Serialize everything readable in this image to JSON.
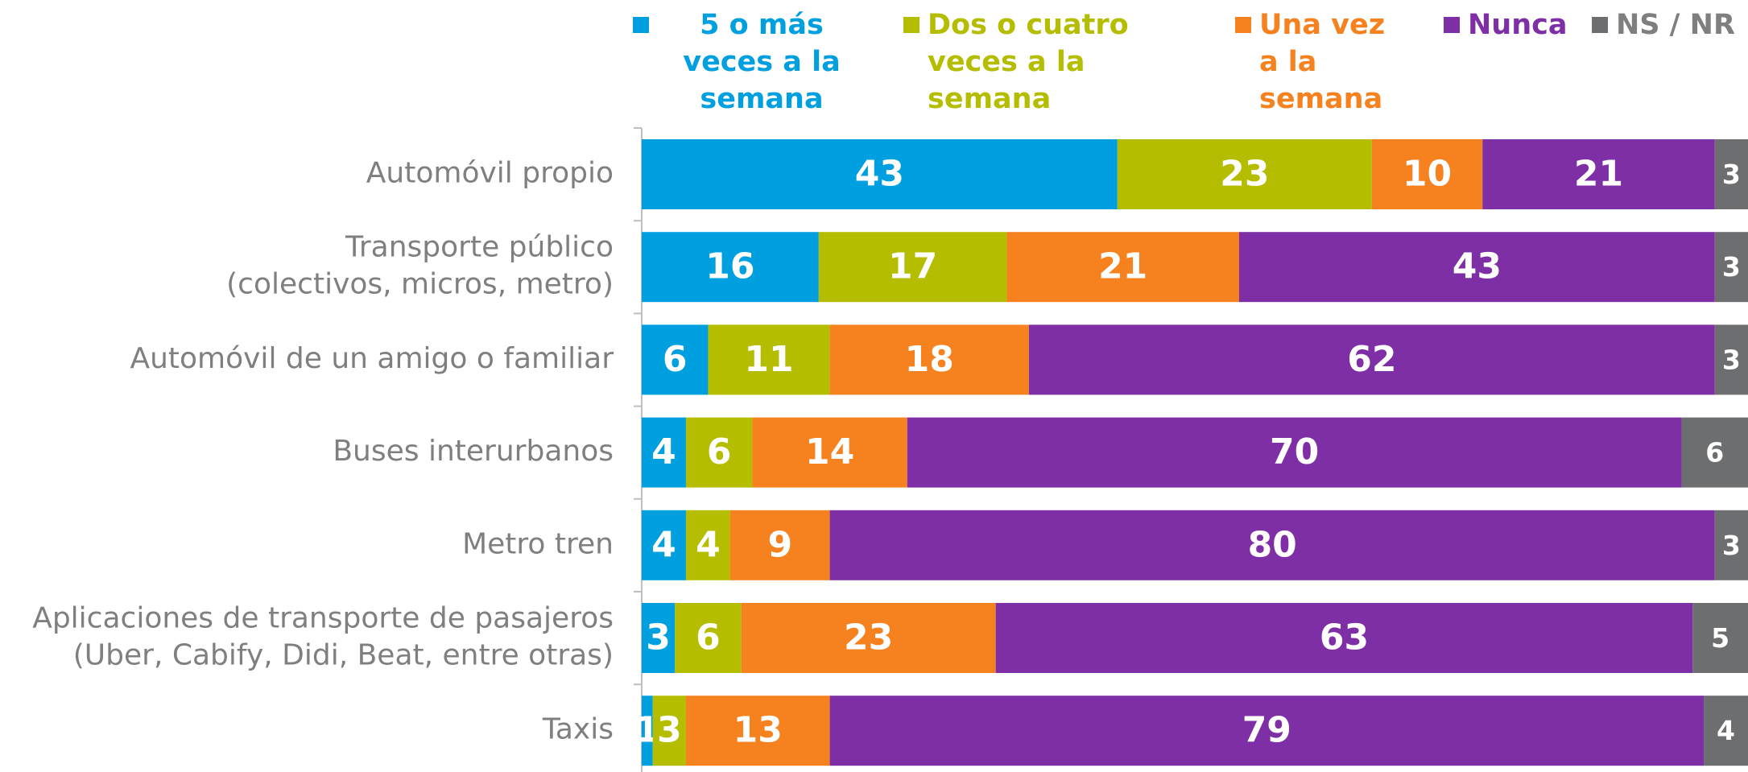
{
  "chart_data": {
    "type": "stacked-barh",
    "categories": [
      "Automóvil propio",
      "Transporte público\n(colectivos, micros, metro)",
      "Automóvil de un amigo o familiar",
      "Buses interurbanos",
      "Metro tren",
      "Aplicaciones de transporte de pasajeros\n(Uber, Cabify, Didi, Beat, entre otras)",
      "Taxis"
    ],
    "series": [
      {
        "name": "5 o más veces a la semana",
        "color": "#009fe0",
        "values": [
          43,
          16,
          6,
          4,
          4,
          3,
          1
        ]
      },
      {
        "name": "Dos o cuatro veces a la semana",
        "color": "#b5bd00",
        "values": [
          23,
          17,
          11,
          6,
          4,
          6,
          3
        ]
      },
      {
        "name": "Una vez a la semana",
        "color": "#f5821f",
        "values": [
          10,
          21,
          18,
          14,
          9,
          23,
          13
        ]
      },
      {
        "name": "Nunca",
        "color": "#7f2fa5",
        "values": [
          21,
          43,
          62,
          70,
          80,
          63,
          79
        ]
      },
      {
        "name": "NS / NR",
        "color": "#6d6e70",
        "values": [
          3,
          3,
          3,
          6,
          3,
          5,
          4
        ]
      }
    ],
    "xlim": [
      0,
      100
    ],
    "legend": "top"
  }
}
